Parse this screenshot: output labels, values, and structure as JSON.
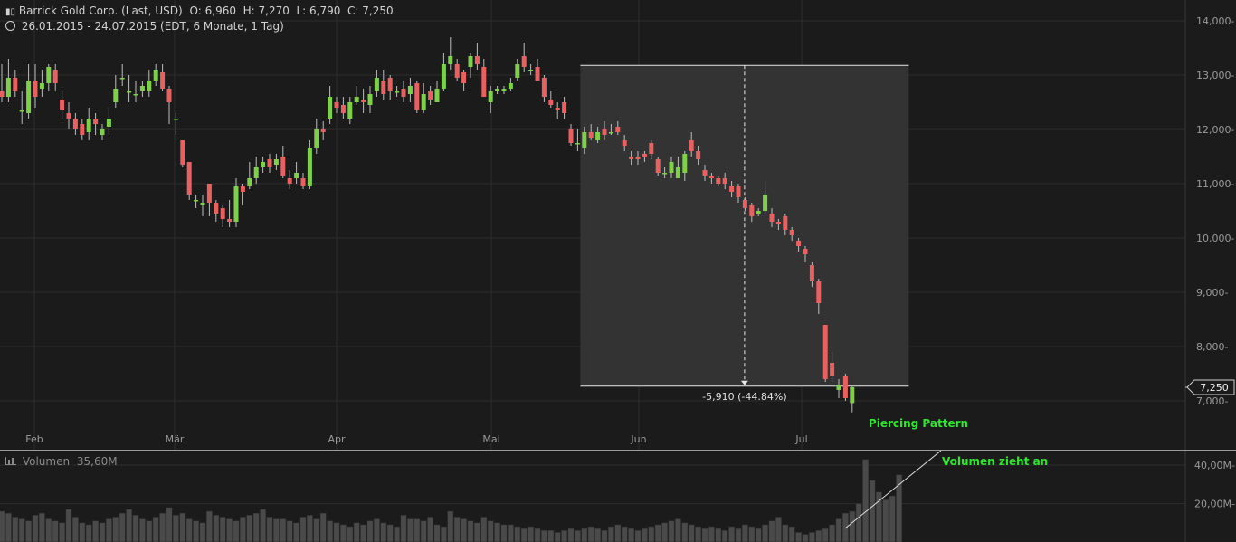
{
  "header": {
    "instrument": "Barrick Gold Corp. (Last, USD)",
    "ohlc": "O: 6,960  H: 7,270  L: 6,790  C: 7,250",
    "range": "26.01.2015 - 24.07.2015 (EDT, 6 Monate, 1 Tag)"
  },
  "volume_panel": {
    "label": "Volumen",
    "value": "35,60M"
  },
  "colors": {
    "background": "#1b1b1b",
    "grid": "#2c2c2c",
    "up": "#7ed04b",
    "down": "#e86060",
    "volume": "#4a4a4a",
    "highlight": "#333333",
    "annotation_green": "#2fe62f"
  },
  "chart_data": [
    {
      "type": "candlestick",
      "x_tick_labels": [
        "Feb",
        "Mär",
        "Apr",
        "Mai",
        "Jun",
        "Jul"
      ],
      "y_tick_labels": [
        "14,000-",
        "13,000-",
        "12,000-",
        "11,000-",
        "10,000-",
        "9,000-",
        "8,000-",
        "7,000-"
      ],
      "y_ticks": [
        14,
        13,
        12,
        11,
        10,
        9,
        8,
        7
      ],
      "ylim": [
        6.65,
        14.3
      ],
      "last_price_label": "7,250",
      "last_price": 7.25,
      "candles": [
        [
          12.7,
          12.6,
          13.2,
          12.5
        ],
        [
          12.6,
          12.95,
          13.3,
          12.5
        ],
        [
          12.95,
          12.7,
          13.1,
          12.6
        ],
        [
          12.35,
          12.35,
          12.7,
          12.1
        ],
        [
          12.3,
          12.9,
          13.2,
          12.2
        ],
        [
          12.9,
          12.6,
          13.2,
          12.4
        ],
        [
          12.75,
          12.85,
          13.1,
          12.6
        ],
        [
          12.85,
          13.15,
          13.2,
          12.7
        ],
        [
          13.1,
          12.85,
          13.2,
          12.7
        ],
        [
          12.55,
          12.35,
          12.7,
          12.2
        ],
        [
          12.3,
          12.2,
          12.5,
          12.0
        ],
        [
          12.2,
          12.0,
          12.3,
          11.9
        ],
        [
          12.1,
          11.9,
          12.2,
          11.8
        ],
        [
          11.95,
          12.2,
          12.4,
          11.8
        ],
        [
          12.2,
          12.1,
          12.3,
          11.9
        ],
        [
          11.9,
          12.0,
          12.1,
          11.8
        ],
        [
          12.05,
          12.2,
          12.4,
          11.9
        ],
        [
          12.5,
          12.75,
          13.0,
          12.4
        ],
        [
          12.95,
          12.95,
          13.2,
          12.8
        ],
        [
          12.7,
          12.7,
          13.0,
          12.5
        ],
        [
          12.65,
          12.65,
          12.9,
          12.5
        ],
        [
          12.7,
          12.8,
          12.9,
          12.6
        ],
        [
          12.7,
          12.9,
          13.1,
          12.6
        ],
        [
          12.9,
          13.1,
          13.2,
          12.8
        ],
        [
          13.05,
          12.75,
          13.2,
          12.7
        ],
        [
          12.75,
          12.5,
          12.8,
          12.1
        ],
        [
          12.2,
          12.2,
          12.3,
          11.9
        ],
        [
          11.8,
          11.35,
          11.8,
          11.3
        ],
        [
          11.4,
          10.8,
          11.4,
          10.7
        ],
        [
          10.7,
          10.7,
          10.8,
          10.55
        ],
        [
          10.6,
          10.65,
          10.8,
          10.4
        ],
        [
          11.0,
          10.65,
          11.0,
          10.4
        ],
        [
          10.65,
          10.45,
          10.7,
          10.3
        ],
        [
          10.55,
          10.35,
          10.6,
          10.2
        ],
        [
          10.35,
          10.3,
          10.7,
          10.2
        ],
        [
          10.3,
          10.95,
          11.1,
          10.2
        ],
        [
          10.95,
          10.85,
          11.0,
          10.6
        ],
        [
          10.95,
          11.1,
          11.4,
          10.9
        ],
        [
          11.1,
          11.3,
          11.5,
          11.0
        ],
        [
          11.3,
          11.4,
          11.5,
          11.2
        ],
        [
          11.45,
          11.3,
          11.55,
          11.2
        ],
        [
          11.35,
          11.45,
          11.55,
          11.25
        ],
        [
          11.5,
          11.15,
          11.7,
          11.1
        ],
        [
          11.1,
          11.0,
          11.25,
          10.9
        ],
        [
          11.1,
          11.2,
          11.4,
          11.0
        ],
        [
          11.1,
          10.95,
          11.2,
          10.9
        ],
        [
          10.95,
          11.65,
          11.8,
          10.9
        ],
        [
          11.65,
          12.0,
          12.2,
          11.55
        ],
        [
          12.0,
          11.95,
          12.15,
          11.8
        ],
        [
          12.2,
          12.6,
          12.8,
          12.1
        ],
        [
          12.5,
          12.4,
          12.6,
          12.3
        ],
        [
          12.45,
          12.3,
          12.6,
          12.2
        ],
        [
          12.2,
          12.5,
          12.6,
          12.1
        ],
        [
          12.5,
          12.6,
          12.8,
          12.45
        ],
        [
          12.55,
          12.5,
          12.75,
          12.3
        ],
        [
          12.45,
          12.65,
          12.8,
          12.3
        ],
        [
          12.7,
          12.95,
          13.1,
          12.6
        ],
        [
          12.9,
          12.65,
          13.1,
          12.55
        ],
        [
          12.95,
          12.7,
          13.0,
          12.55
        ],
        [
          12.7,
          12.7,
          12.8,
          12.6
        ],
        [
          12.75,
          12.6,
          12.9,
          12.5
        ],
        [
          12.65,
          12.8,
          12.95,
          12.5
        ],
        [
          12.85,
          12.35,
          12.9,
          12.3
        ],
        [
          12.35,
          12.65,
          12.85,
          12.3
        ],
        [
          12.7,
          12.55,
          12.8,
          12.45
        ],
        [
          12.5,
          12.75,
          12.9,
          12.5
        ],
        [
          12.75,
          13.2,
          13.4,
          12.7
        ],
        [
          13.2,
          13.35,
          13.7,
          13.1
        ],
        [
          13.2,
          12.95,
          13.3,
          12.9
        ],
        [
          13.05,
          12.85,
          13.1,
          12.7
        ],
        [
          13.15,
          13.35,
          13.4,
          12.95
        ],
        [
          13.35,
          13.2,
          13.6,
          13.1
        ],
        [
          13.15,
          12.6,
          13.3,
          12.6
        ],
        [
          12.5,
          12.7,
          12.8,
          12.3
        ],
        [
          12.7,
          12.75,
          12.8,
          12.65
        ],
        [
          12.7,
          12.75,
          12.8,
          12.65
        ],
        [
          12.75,
          12.85,
          12.95,
          12.7
        ],
        [
          12.95,
          13.2,
          13.3,
          12.9
        ],
        [
          13.35,
          13.15,
          13.6,
          13.05
        ],
        [
          13.1,
          13.1,
          13.2,
          13.0
        ],
        [
          13.15,
          12.9,
          13.3,
          12.9
        ],
        [
          12.95,
          12.6,
          13.0,
          12.5
        ],
        [
          12.55,
          12.45,
          12.7,
          12.4
        ],
        [
          12.4,
          12.35,
          12.5,
          12.2
        ],
        [
          12.5,
          12.3,
          12.6,
          12.2
        ],
        [
          12.0,
          11.75,
          12.1,
          11.7
        ],
        [
          11.75,
          11.75,
          12.0,
          11.6
        ],
        [
          11.65,
          11.95,
          12.05,
          11.55
        ],
        [
          11.95,
          11.85,
          12.1,
          11.8
        ],
        [
          11.8,
          11.95,
          12.05,
          11.75
        ],
        [
          12.0,
          11.9,
          12.15,
          11.8
        ],
        [
          11.95,
          11.95,
          12.1,
          11.9
        ],
        [
          12.05,
          11.95,
          12.15,
          11.9
        ],
        [
          11.8,
          11.7,
          11.9,
          11.6
        ],
        [
          11.5,
          11.45,
          11.6,
          11.35
        ],
        [
          11.5,
          11.45,
          11.6,
          11.35
        ],
        [
          11.55,
          11.5,
          11.6,
          11.4
        ],
        [
          11.75,
          11.55,
          11.8,
          11.45
        ],
        [
          11.45,
          11.2,
          11.5,
          11.15
        ],
        [
          11.2,
          11.2,
          11.3,
          11.1
        ],
        [
          11.2,
          11.4,
          11.5,
          11.1
        ],
        [
          11.1,
          11.3,
          11.5,
          11.1
        ],
        [
          11.2,
          11.55,
          11.6,
          11.05
        ],
        [
          11.8,
          11.6,
          11.95,
          11.5
        ],
        [
          11.6,
          11.45,
          11.7,
          11.35
        ],
        [
          11.25,
          11.15,
          11.35,
          11.05
        ],
        [
          11.15,
          11.1,
          11.2,
          11.0
        ],
        [
          11.1,
          11.0,
          11.15,
          10.95
        ],
        [
          11.1,
          11.0,
          11.2,
          10.9
        ],
        [
          10.95,
          10.85,
          11.05,
          10.75
        ],
        [
          10.95,
          10.75,
          11.0,
          10.65
        ],
        [
          10.7,
          10.55,
          10.75,
          10.5
        ],
        [
          10.6,
          10.4,
          10.65,
          10.3
        ],
        [
          10.45,
          10.5,
          10.55,
          10.4
        ],
        [
          10.5,
          10.8,
          11.05,
          10.45
        ],
        [
          10.45,
          10.3,
          10.55,
          10.2
        ],
        [
          10.3,
          10.25,
          10.35,
          10.15
        ],
        [
          10.4,
          10.15,
          10.45,
          10.05
        ],
        [
          10.15,
          10.05,
          10.2,
          9.95
        ],
        [
          9.95,
          9.85,
          10.0,
          9.75
        ],
        [
          9.8,
          9.7,
          9.85,
          9.55
        ],
        [
          9.5,
          9.2,
          9.55,
          9.1
        ],
        [
          9.2,
          8.8,
          9.25,
          8.6
        ],
        [
          8.4,
          7.4,
          8.4,
          7.35
        ],
        [
          7.7,
          7.45,
          7.9,
          7.35
        ],
        [
          7.2,
          7.3,
          7.4,
          7.05
        ],
        [
          7.45,
          7.05,
          7.5,
          7.0
        ],
        [
          6.96,
          7.25,
          7.27,
          6.79
        ]
      ],
      "measurement": {
        "label": "-5,910 (-44.84%)",
        "start_price": 13.18,
        "end_price": 7.27,
        "change": -5.91,
        "change_percent": -44.84
      },
      "annotations": [
        "Piercing Pattern"
      ]
    },
    {
      "type": "bar",
      "title": "Volumen",
      "y_tick_labels": [
        "40,00M-",
        "20,00M-"
      ],
      "y_ticks": [
        40,
        20
      ],
      "ylim": [
        0,
        45
      ],
      "volumes": [
        16,
        15,
        13,
        12,
        11,
        14,
        15,
        12,
        11,
        10,
        17,
        13,
        10,
        9,
        11,
        10,
        12,
        13,
        15,
        17,
        14,
        12,
        11,
        13,
        15,
        18,
        14,
        15,
        12,
        11,
        10,
        16,
        14,
        13,
        12,
        11,
        13,
        14,
        15,
        17,
        13,
        12,
        12,
        11,
        10,
        13,
        14,
        12,
        15,
        11,
        10,
        9,
        8,
        10,
        9,
        11,
        12,
        10,
        9,
        8,
        14,
        12,
        12,
        11,
        13,
        9,
        8,
        16,
        13,
        12,
        11,
        10,
        13,
        11,
        10,
        9,
        9,
        8,
        7,
        8,
        7,
        6,
        6,
        5,
        6,
        7,
        6,
        7,
        8,
        7,
        6,
        8,
        9,
        8,
        7,
        6,
        7,
        8,
        9,
        10,
        11,
        12,
        10,
        9,
        8,
        7,
        8,
        7,
        6,
        8,
        7,
        9,
        8,
        7,
        9,
        11,
        13,
        9,
        8,
        5,
        4,
        5,
        6,
        7,
        9,
        12,
        15,
        16,
        20,
        43,
        32,
        26,
        22,
        24,
        35
      ],
      "annotations": [
        "Volumen zieht an"
      ]
    }
  ]
}
